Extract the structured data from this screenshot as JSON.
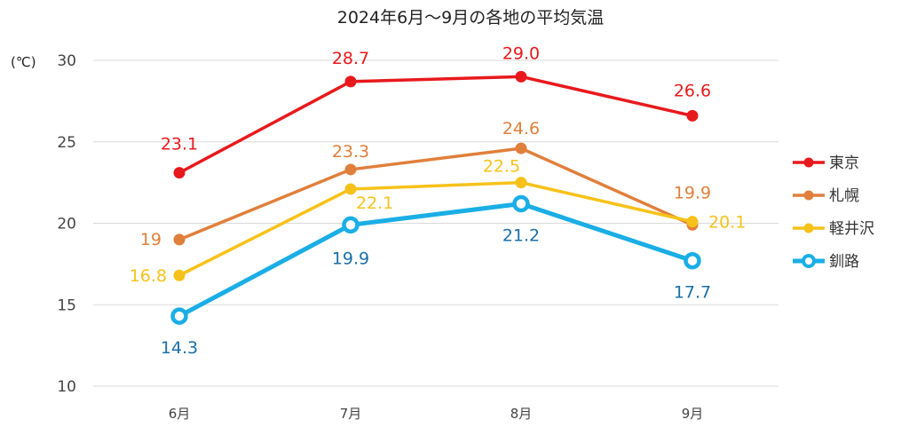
{
  "chart_data": {
    "type": "line",
    "title": "2024年6月〜9月の各地の平均気温",
    "ylabel": "(℃)",
    "xlabel": "",
    "categories": [
      "6月",
      "7月",
      "8月",
      "9月"
    ],
    "ylim": [
      10,
      30
    ],
    "yticks": [
      "10",
      "15",
      "20",
      "25",
      "30"
    ],
    "grid": true,
    "legend_position": "right",
    "series": [
      {
        "name": "東京",
        "color": "#e8191c",
        "marker": "filled",
        "values": [
          23.1,
          28.7,
          29.0,
          26.6
        ],
        "labels": [
          "23.1",
          "28.7",
          "29.0",
          "26.6"
        ]
      },
      {
        "name": "札幌",
        "color": "#e07f3b",
        "marker": "filled",
        "values": [
          19.0,
          23.3,
          24.6,
          19.9
        ],
        "labels": [
          "19",
          "23.3",
          "24.6",
          "19.9"
        ]
      },
      {
        "name": "軽井沢",
        "color": "#f6c21a",
        "marker": "filled",
        "values": [
          16.8,
          22.1,
          22.5,
          20.1
        ],
        "labels": [
          "16.8",
          "22.1",
          "22.5",
          "20.1"
        ]
      },
      {
        "name": "釧路",
        "color": "#1aaee5",
        "label_color": "#1a6fa8",
        "marker": "hollow",
        "values": [
          14.3,
          19.9,
          21.2,
          17.7
        ],
        "labels": [
          "14.3",
          "19.9",
          "21.2",
          "17.7"
        ]
      }
    ]
  }
}
